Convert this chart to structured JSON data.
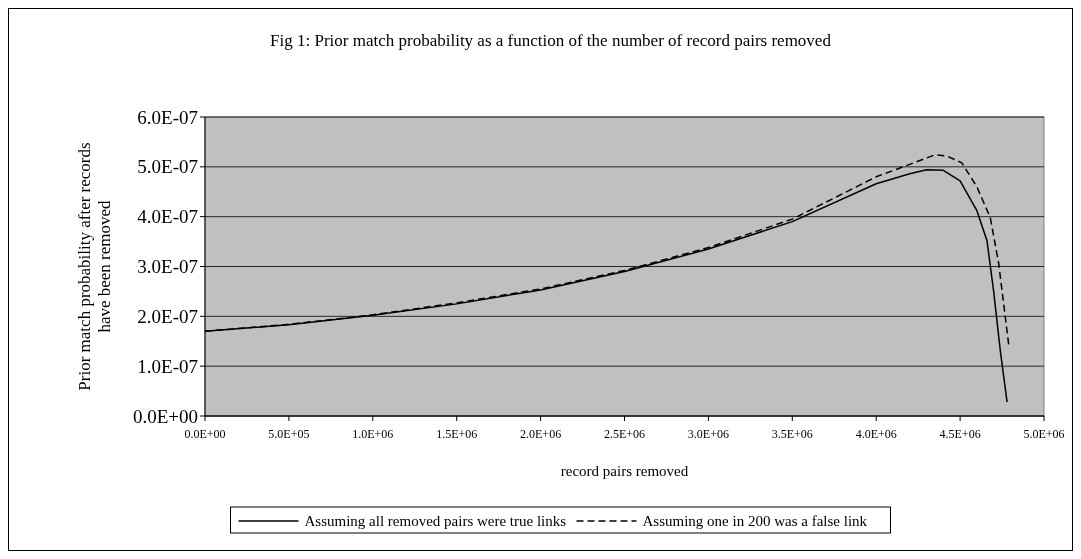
{
  "chart_data": {
    "type": "line",
    "title": "Fig 1: Prior match probability as a function of the number of record pairs removed",
    "xlabel": "record pairs removed",
    "ylabel": "Prior match probability after records have been removed",
    "xlim": [
      0,
      5000000
    ],
    "xticks": [
      {
        "value": 0,
        "label": "0.0E+00"
      },
      {
        "value": 500000,
        "label": "5.0E+05"
      },
      {
        "value": 1000000,
        "label": "1.0E+06"
      },
      {
        "value": 1500000,
        "label": "1.5E+06"
      },
      {
        "value": 2000000,
        "label": "2.0E+06"
      },
      {
        "value": 2500000,
        "label": "2.5E+06"
      },
      {
        "value": 3000000,
        "label": "3.0E+06"
      },
      {
        "value": 3500000,
        "label": "3.5E+06"
      },
      {
        "value": 4000000,
        "label": "4.0E+06"
      },
      {
        "value": 4500000,
        "label": "4.5E+06"
      },
      {
        "value": 5000000,
        "label": "5.0E+06"
      }
    ],
    "ylim": [
      0,
      6e-07
    ],
    "yticks": [
      {
        "value": 0,
        "label": "0.0E+00"
      },
      {
        "value": 1e-07,
        "label": "1.0E-07"
      },
      {
        "value": 2e-07,
        "label": "2.0E-07"
      },
      {
        "value": 3e-07,
        "label": "3.0E-07"
      },
      {
        "value": 4e-07,
        "label": "4.0E-07"
      },
      {
        "value": 5e-07,
        "label": "5.0E-07"
      },
      {
        "value": 6e-07,
        "label": "6.0E-07"
      }
    ],
    "grid": "y",
    "legend": "bottom",
    "series": [
      {
        "name": "Assuming all removed pairs were true links",
        "color": "#000000",
        "line_style": "solid",
        "x": [
          0,
          500000,
          1000000,
          1500000,
          2000000,
          2500000,
          3000000,
          3500000,
          4000000,
          4200000,
          4300000,
          4400000,
          4500000,
          4600000,
          4660000,
          4700000,
          4740000,
          4780000
        ],
        "values": [
          1.7e-07,
          1.83e-07,
          2.02e-07,
          2.25e-07,
          2.53e-07,
          2.9e-07,
          3.35e-07,
          3.9e-07,
          4.66e-07,
          4.86e-07,
          4.94e-07,
          4.93e-07,
          4.72e-07,
          4.12e-07,
          3.52e-07,
          2.5e-07,
          1.3e-07,
          2.8e-08
        ]
      },
      {
        "name": "Assuming one in 200 was a false link",
        "color": "#000000",
        "line_style": "dashed",
        "x": [
          0,
          500000,
          1000000,
          1500000,
          2000000,
          2500000,
          3000000,
          3500000,
          4000000,
          4200000,
          4350000,
          4420000,
          4510000,
          4600000,
          4680000,
          4730000,
          4790000
        ],
        "values": [
          1.7e-07,
          1.84e-07,
          2.03e-07,
          2.27e-07,
          2.55e-07,
          2.92e-07,
          3.38e-07,
          3.95e-07,
          4.8e-07,
          5.05e-07,
          5.24e-07,
          5.22e-07,
          5.08e-07,
          4.6e-07,
          3.98e-07,
          3.06e-07,
          1.42e-07
        ]
      }
    ]
  }
}
